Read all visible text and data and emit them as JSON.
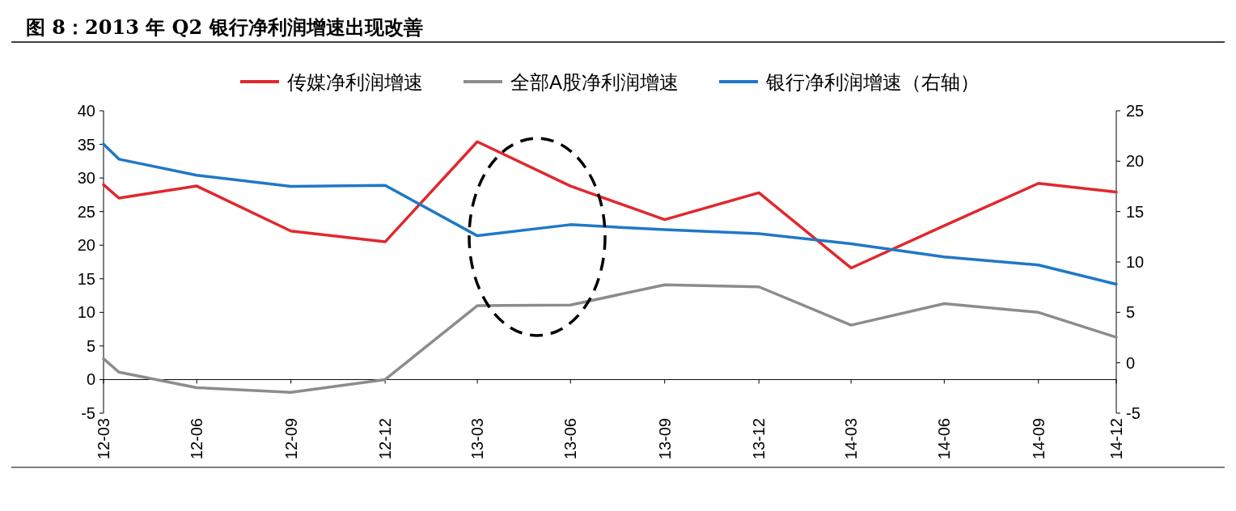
{
  "chart_data": {
    "type": "line",
    "title": "图 8：2013 年 Q2 银行净利润增速出现改善",
    "x": [
      "2012-03-31",
      "2012-04-15",
      "2012-06-30",
      "2012-09-30",
      "2012-12-31",
      "2013-03-31",
      "2013-06-30",
      "2013-09-30",
      "2013-12-31",
      "2014-03-31",
      "2014-06-30",
      "2014-09-30",
      "2014-12-15"
    ],
    "xlim": [
      "2012-03-31",
      "2014-12-15"
    ],
    "xticks": [
      {
        "value": "2012-03-31",
        "label": "12-03"
      },
      {
        "value": "2012-06-30",
        "label": "12-06"
      },
      {
        "value": "2012-09-30",
        "label": "12-09"
      },
      {
        "value": "2012-12-31",
        "label": "12-12"
      },
      {
        "value": "2013-03-31",
        "label": "13-03"
      },
      {
        "value": "2013-06-30",
        "label": "13-06"
      },
      {
        "value": "2013-09-30",
        "label": "13-09"
      },
      {
        "value": "2013-12-31",
        "label": "13-12"
      },
      {
        "value": "2014-03-31",
        "label": "14-03"
      },
      {
        "value": "2014-06-30",
        "label": "14-06"
      },
      {
        "value": "2014-09-30",
        "label": "14-09"
      },
      {
        "value": "2014-12-15",
        "label": "14-12"
      }
    ],
    "ylim": [
      -5,
      40
    ],
    "yticks": [
      -5,
      0,
      5,
      10,
      15,
      20,
      25,
      30,
      35,
      40
    ],
    "y2lim": [
      -5,
      25
    ],
    "y2ticks": [
      -5,
      0,
      5,
      10,
      15,
      20,
      25
    ],
    "legend": "top",
    "series": [
      {
        "name": "传媒净利润增速",
        "color": "#e0282e",
        "values": [
          29.0,
          27.0,
          28.8,
          22.1,
          20.5,
          35.4,
          28.8,
          23.8,
          27.8,
          16.6,
          22.9,
          29.2,
          27.9
        ]
      },
      {
        "name": "全部A股净利润增速",
        "color": "#8c8c8c",
        "values": [
          3.1,
          1.1,
          -1.2,
          -1.9,
          0,
          11.0,
          11.1,
          14.1,
          13.8,
          8.1,
          11.3,
          10.0,
          6.3
        ]
      },
      {
        "name": "银行净利润增速（右轴）",
        "color": "#1f78c8",
        "axis": "y2",
        "values": [
          21.7,
          20.2,
          18.6,
          17.5,
          17.6,
          12.6,
          13.7,
          13.2,
          12.8,
          11.8,
          10.5,
          9.7,
          7.8
        ]
      }
    ]
  }
}
